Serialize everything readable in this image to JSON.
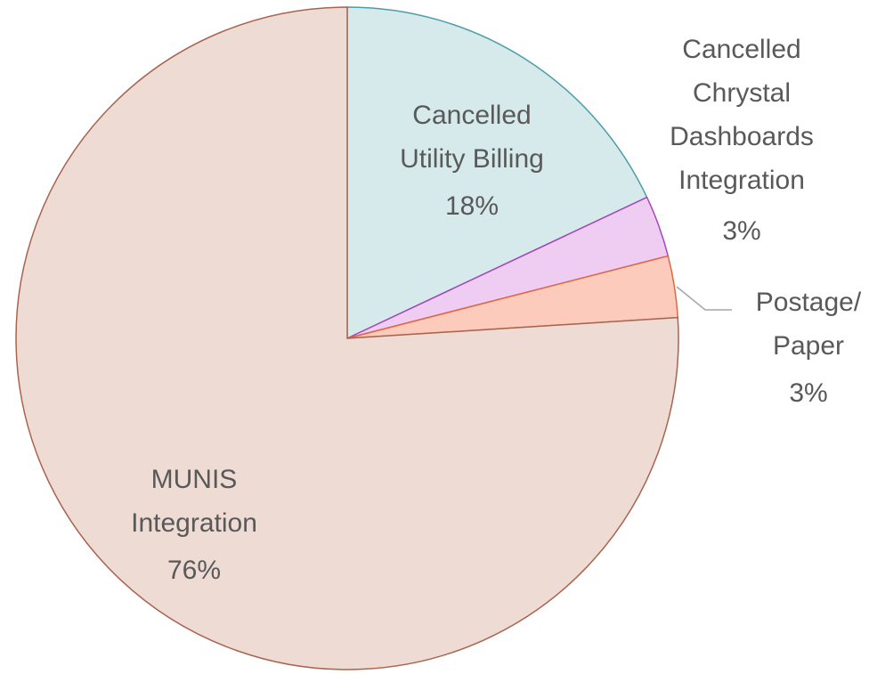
{
  "chart_data": {
    "type": "pie",
    "categories": [
      "Cancelled\nUtility Billing",
      "Cancelled\nChrystal\nDashboards\nIntegration",
      "Postage/\nPaper",
      "MUNIS\nIntegration"
    ],
    "values": [
      18,
      3,
      3,
      76
    ],
    "value_labels": [
      "18%",
      "3%",
      "3%",
      "76%"
    ],
    "colors": [
      "#d6e9eb",
      "#efcdf2",
      "#fccbbb",
      "#eedcd4"
    ],
    "stroke_colors": [
      "#4a9ea8",
      "#a646b8",
      "#e0683f",
      "#a8644e"
    ]
  }
}
